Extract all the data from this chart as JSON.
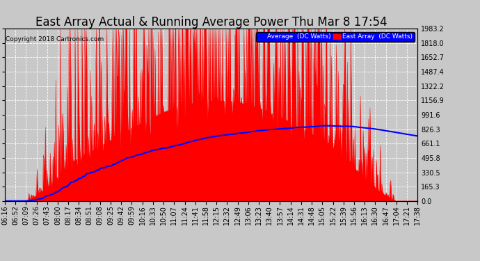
{
  "title": "East Array Actual & Running Average Power Thu Mar 8 17:54",
  "copyright": "Copyright 2018 Cartronics.com",
  "legend_labels": [
    "Average  (DC Watts)",
    "East Array  (DC Watts)"
  ],
  "legend_colors": [
    "blue",
    "red"
  ],
  "yticks": [
    0.0,
    165.3,
    330.5,
    495.8,
    661.1,
    826.3,
    991.6,
    1156.9,
    1322.2,
    1487.4,
    1652.7,
    1818.0,
    1983.2
  ],
  "ymax": 1983.2,
  "background_color": "#c8c8c8",
  "plot_bg_color": "#c8c8c8",
  "grid_color": "white",
  "title_fontsize": 12,
  "tick_label_fontsize": 7,
  "time_labels": [
    "06:16",
    "06:52",
    "07:09",
    "07:26",
    "07:43",
    "08:00",
    "08:17",
    "08:34",
    "08:51",
    "09:08",
    "09:25",
    "09:42",
    "09:59",
    "10:16",
    "10:33",
    "10:50",
    "11:07",
    "11:24",
    "11:41",
    "11:58",
    "12:15",
    "12:32",
    "12:49",
    "13:06",
    "13:23",
    "13:40",
    "13:57",
    "14:14",
    "14:31",
    "14:48",
    "15:05",
    "15:22",
    "15:39",
    "15:56",
    "16:13",
    "16:30",
    "16:47",
    "17:04",
    "17:21",
    "17:38"
  ]
}
